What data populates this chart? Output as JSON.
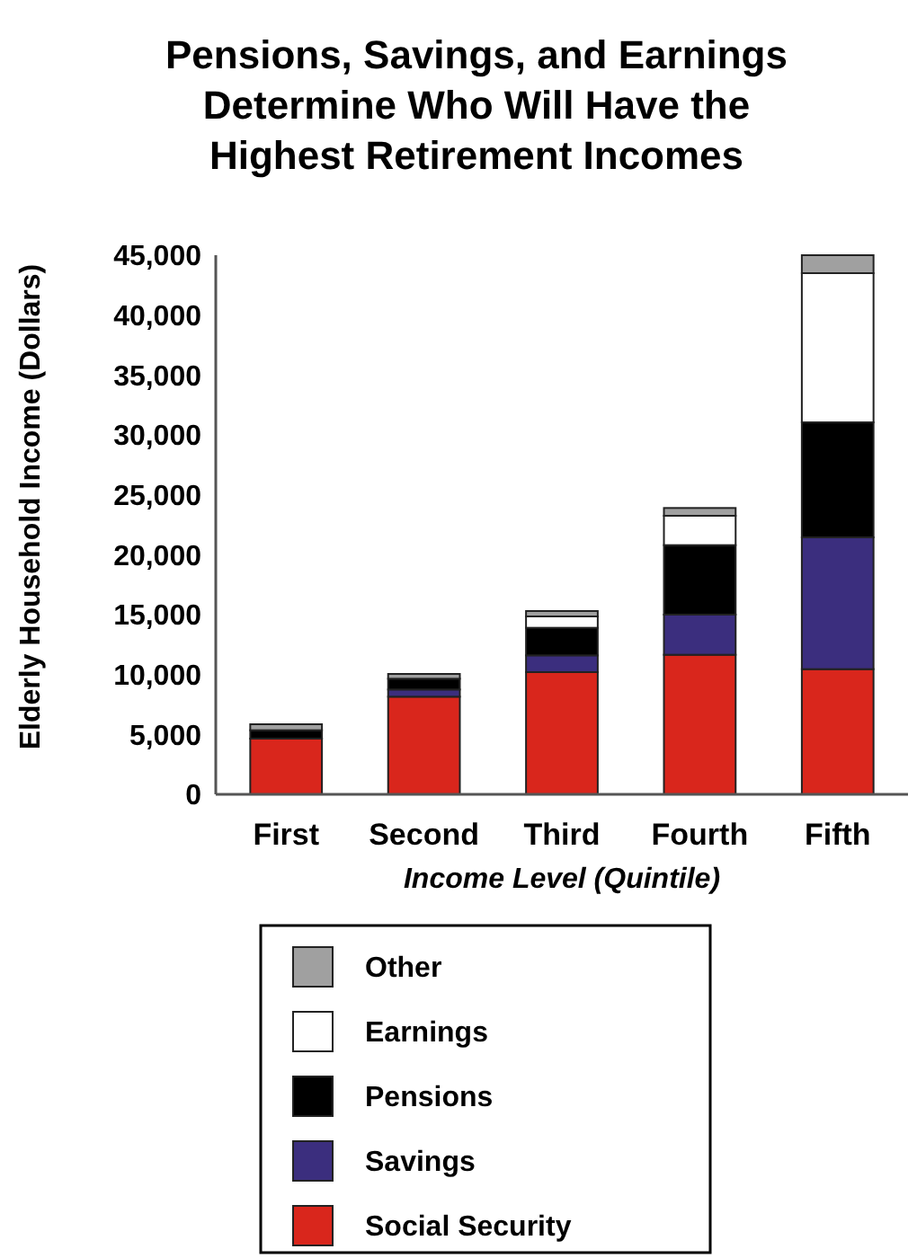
{
  "chart_data": {
    "type": "bar",
    "title": "Pensions, Savings, and Earnings Determine Who Will Have the Highest Retirement Incomes",
    "xlabel": "Income Level (Quintile)",
    "ylabel": "Elderly Household Income (Dollars)",
    "categories": [
      "First",
      "Second",
      "Third",
      "Fourth",
      "Fifth"
    ],
    "stacked": true,
    "legend": "bottom",
    "grid": false,
    "ylim": [
      0,
      45000
    ],
    "yticks": [
      {
        "value": 0,
        "label": "0"
      },
      {
        "value": 5000,
        "label": "5,000"
      },
      {
        "value": 10000,
        "label": "10,000"
      },
      {
        "value": 15000,
        "label": "15,000"
      },
      {
        "value": 20000,
        "label": "20,000"
      },
      {
        "value": 25000,
        "label": "25,000"
      },
      {
        "value": 30000,
        "label": "30,000"
      },
      {
        "value": 35000,
        "label": "35,000"
      },
      {
        "value": 40000,
        "label": "40,000"
      },
      {
        "value": 45000,
        "label": "45,000"
      }
    ],
    "series": [
      {
        "name": "Social Security",
        "color": "#d9261c",
        "values": [
          4650,
          8150,
          10200,
          11650,
          10450
        ]
      },
      {
        "name": "Savings",
        "color": "#3b2e7e",
        "values": [
          0,
          600,
          1400,
          3350,
          11000
        ]
      },
      {
        "name": "Pensions",
        "color": "#000000",
        "values": [
          700,
          900,
          2300,
          5800,
          9600
        ]
      },
      {
        "name": "Earnings",
        "color": "#ffffff",
        "values": [
          0,
          0,
          950,
          2450,
          12450
        ]
      },
      {
        "name": "Other",
        "color": "#a0a0a0",
        "values": [
          500,
          400,
          450,
          650,
          1500
        ]
      }
    ]
  }
}
